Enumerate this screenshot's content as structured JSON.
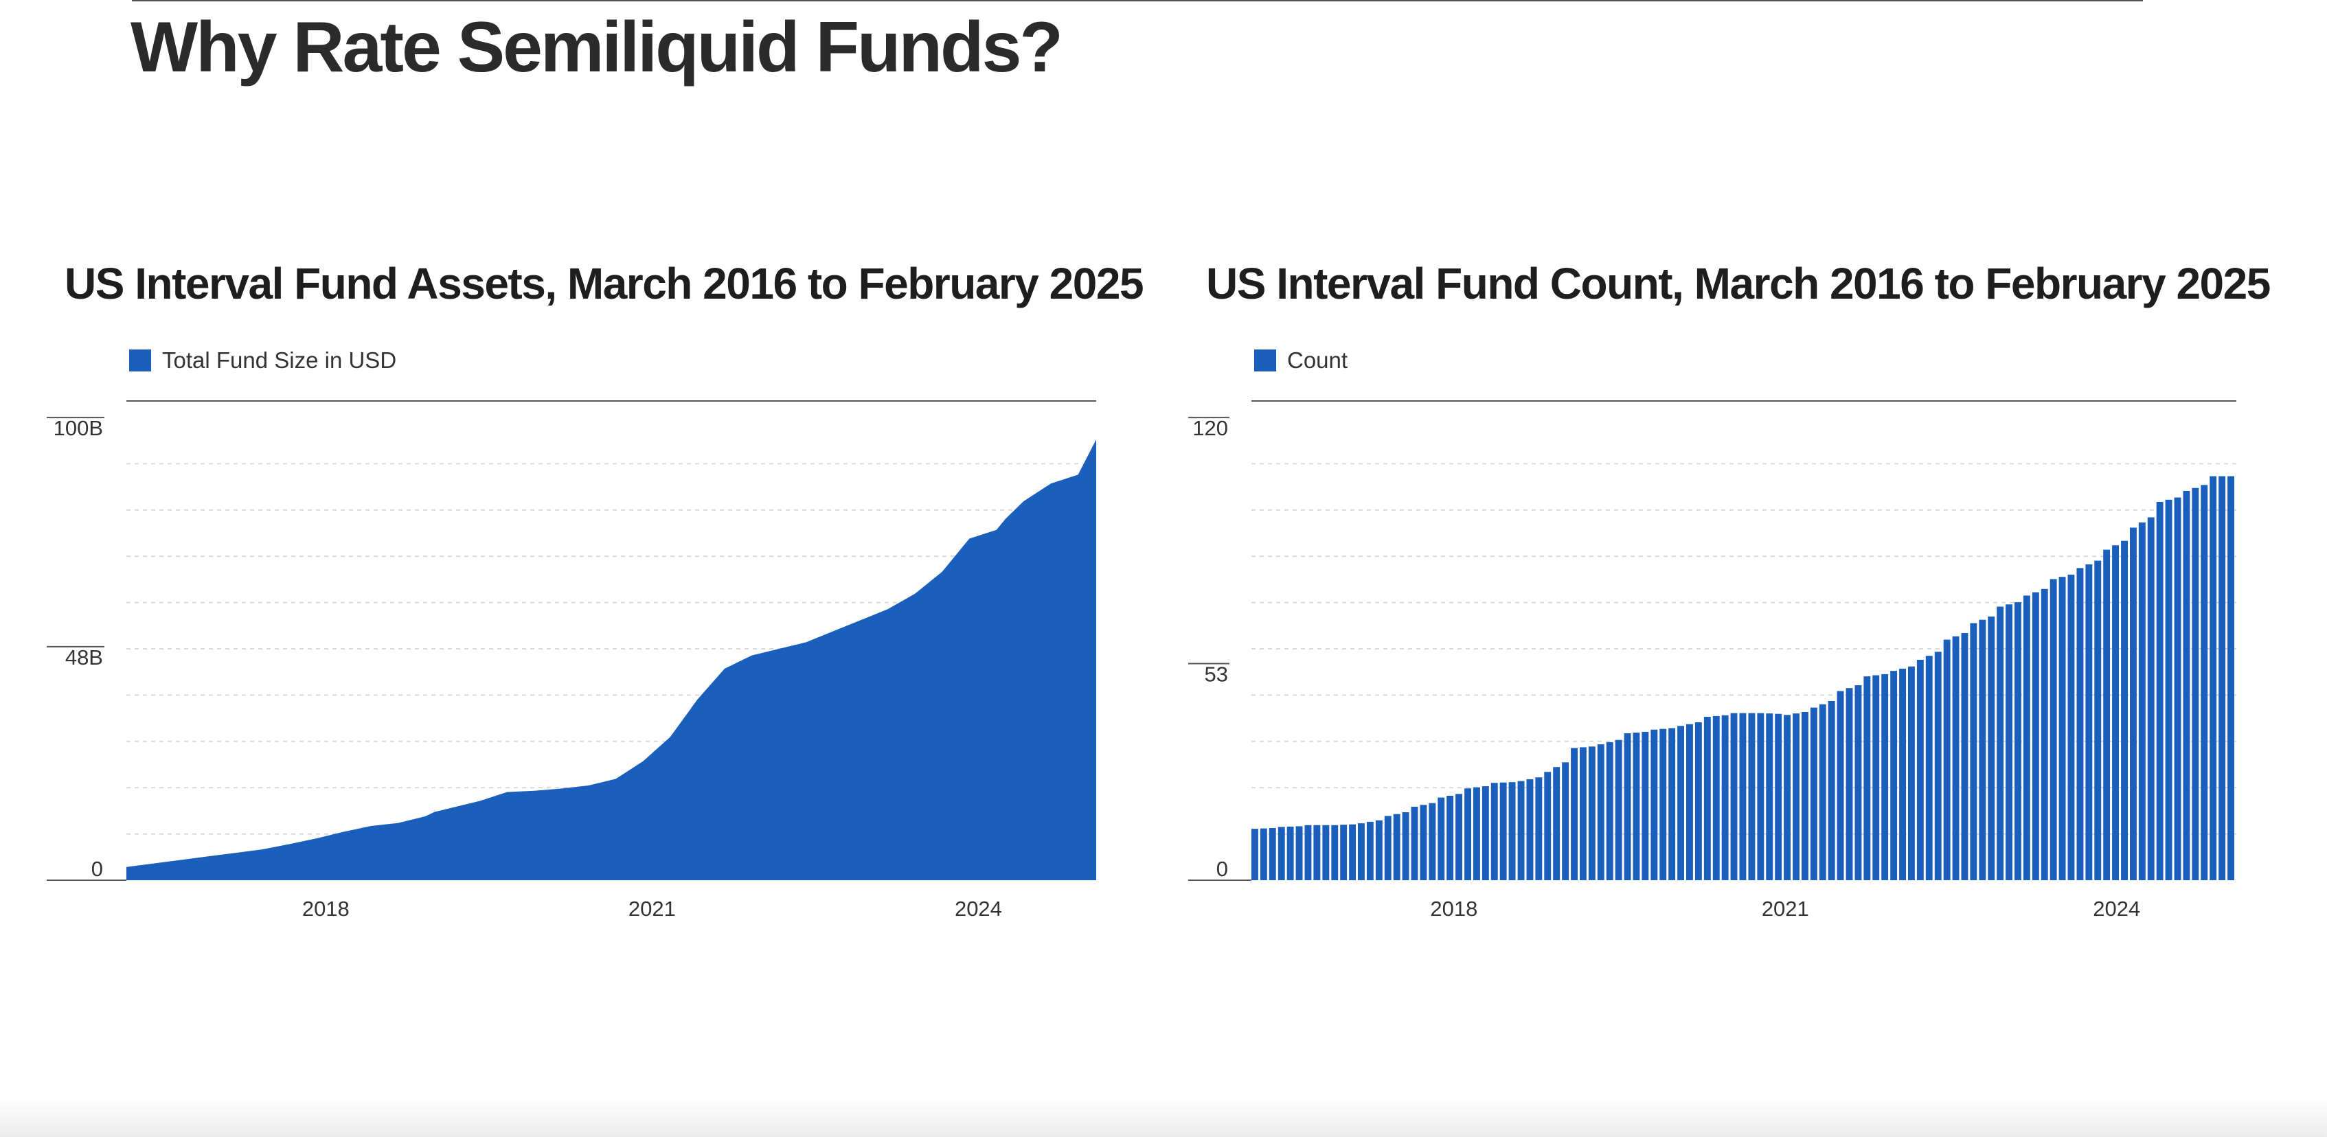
{
  "slide": {
    "title": "Why Rate Semiliquid Funds?"
  },
  "colors": {
    "series": "#1b5fbd",
    "axis": "#555555",
    "grid": "#d9d9d9",
    "text": "#333333"
  },
  "chart_data": [
    {
      "type": "area",
      "title": "US Interval Fund Assets, March 2016 to February 2025",
      "legend": {
        "position": "top-left",
        "entries": [
          "Total Fund Size in USD"
        ]
      },
      "xlabel": "",
      "ylabel": "",
      "x_range": [
        "2016-03",
        "2025-02"
      ],
      "x_ticks": [
        "2018",
        "2021",
        "2024"
      ],
      "y_ticks": [
        {
          "value": 0,
          "label": "0"
        },
        {
          "value": 48,
          "label": "48B"
        },
        {
          "value": 100,
          "label": "100B"
        }
      ],
      "y_unit": "B USD",
      "ylim": [
        0,
        105
      ],
      "grid": true,
      "series": [
        {
          "name": "Total Fund Size in USD",
          "x": [
            "2016-03",
            "2016-06",
            "2016-09",
            "2016-12",
            "2017-03",
            "2017-06",
            "2017-09",
            "2017-12",
            "2018-03",
            "2018-06",
            "2018-09",
            "2018-12",
            "2019-01",
            "2019-03",
            "2019-06",
            "2019-09",
            "2019-12",
            "2020-03",
            "2020-06",
            "2020-09",
            "2020-12",
            "2021-03",
            "2021-06",
            "2021-09",
            "2021-12",
            "2022-03",
            "2022-06",
            "2022-09",
            "2022-12",
            "2023-03",
            "2023-06",
            "2023-09",
            "2023-12",
            "2024-03",
            "2024-04",
            "2024-06",
            "2024-09",
            "2024-12",
            "2025-01",
            "2025-02"
          ],
          "values": [
            3,
            3.8,
            4.6,
            5.4,
            6.2,
            7,
            8.2,
            9.5,
            11,
            12.3,
            13,
            14.5,
            15.5,
            16.5,
            18,
            20,
            20.3,
            20.8,
            21.5,
            23,
            27,
            32.5,
            41,
            48,
            51,
            52.5,
            54,
            56.5,
            59,
            61.5,
            65,
            70,
            77.5,
            79.5,
            82,
            86,
            90,
            92,
            96,
            100
          ]
        }
      ]
    },
    {
      "type": "bar",
      "title": "US Interval Fund Count, March 2016 to February 2025",
      "legend": {
        "position": "top-left",
        "entries": [
          "Count"
        ]
      },
      "xlabel": "",
      "ylabel": "",
      "x_range": [
        "2016-03",
        "2025-02"
      ],
      "x_ticks": [
        "2018",
        "2021",
        "2024"
      ],
      "y_ticks": [
        {
          "value": 0,
          "label": "0"
        },
        {
          "value": 53,
          "label": "53"
        },
        {
          "value": 120,
          "label": "120"
        }
      ],
      "ylim": [
        0,
        126
      ],
      "grid": true,
      "series": [
        {
          "name": "Count",
          "x": [
            "2016-Q1",
            "2016-Q2",
            "2016-Q3",
            "2016-Q4",
            "2017-Q1",
            "2017-Q2",
            "2017-Q3",
            "2017-Q4",
            "2018-Q1",
            "2018-Q2",
            "2018-Q3",
            "2018-Q4",
            "2019-Q1",
            "2019-Q2",
            "2019-Q3",
            "2019-Q4",
            "2020-Q1",
            "2020-Q2",
            "2020-Q3",
            "2020-Q4",
            "2021-Q1",
            "2021-Q2",
            "2021-Q3",
            "2021-Q4",
            "2022-Q1",
            "2022-Q2",
            "2022-Q3",
            "2022-Q4",
            "2023-Q1",
            "2023-Q2",
            "2023-Q3",
            "2023-Q4",
            "2024-Q1",
            "2024-Q2",
            "2024-Q3",
            "2024-Q4",
            "2025-Q1"
          ],
          "values": [
            14,
            14.5,
            15,
            15,
            15.5,
            17.5,
            20,
            22.5,
            25,
            26.5,
            27,
            29.5,
            36,
            37,
            40,
            41,
            42,
            44.5,
            45.5,
            45.5,
            45,
            47,
            51.5,
            55.5,
            57,
            60,
            65.5,
            70,
            74.5,
            77.5,
            82,
            85,
            90,
            96,
            103,
            106,
            110
          ]
        }
      ]
    }
  ]
}
